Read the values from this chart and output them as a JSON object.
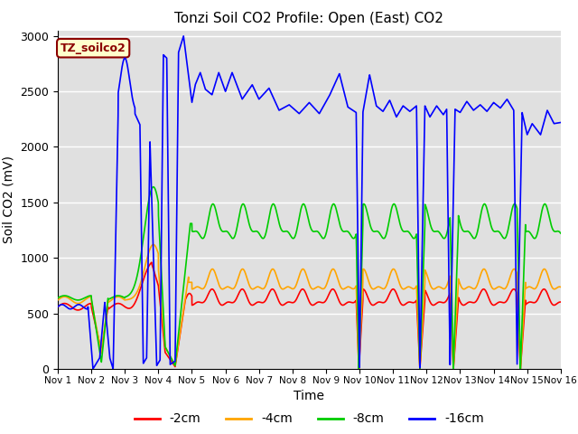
{
  "title": "Tonzi Soil CO2 Profile: Open (East) CO2",
  "xlabel": "Time",
  "ylabel": "Soil CO2 (mV)",
  "xlim": [
    0,
    15
  ],
  "ylim": [
    0,
    3050
  ],
  "yticks": [
    0,
    500,
    1000,
    1500,
    2000,
    2500,
    3000
  ],
  "xtick_labels": [
    "Nov 1",
    "Nov 2",
    "Nov 3",
    "Nov 4",
    "Nov 5",
    "Nov 6",
    "Nov 7",
    "Nov 8",
    "Nov 9",
    "Nov 10",
    "Nov 11",
    "Nov 12",
    "Nov 13",
    "Nov 14",
    "Nov 15",
    "Nov 16"
  ],
  "colors": {
    "2cm": "#ff0000",
    "4cm": "#ffa500",
    "8cm": "#00cc00",
    "16cm": "#0000ff"
  },
  "legend_labels": [
    "-2cm",
    "-4cm",
    "-8cm",
    "-16cm"
  ],
  "annotation_text": "TZ_soilco2",
  "annotation_color": "#8b0000",
  "annotation_bg": "#ffffcc",
  "bg_color": "#e0e0e0",
  "title_fontsize": 11,
  "axis_fontsize": 10,
  "legend_fontsize": 10
}
